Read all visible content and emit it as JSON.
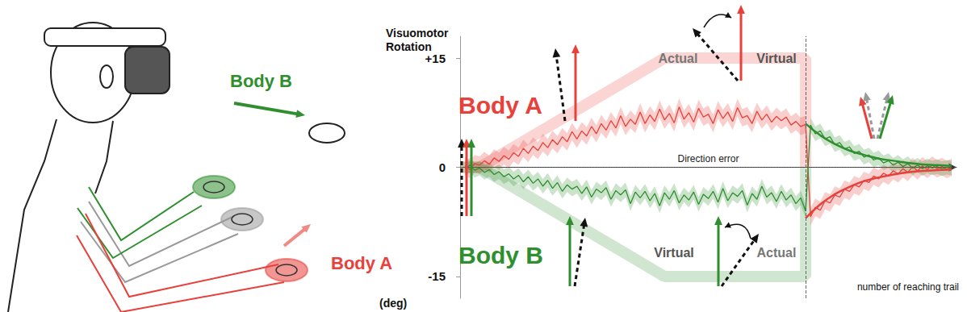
{
  "illustration": {
    "labels": [
      "Body B",
      "Body A"
    ]
  },
  "chart_data": {
    "type": "line",
    "ylabel": "Visuomotor Rotation",
    "yunit": "(deg)",
    "xlabel": "number of reaching trail",
    "zero_label": "Direction error",
    "annotations": [
      "Actual",
      "Virtual",
      "Virtual",
      "Actual"
    ],
    "xlim": [
      0,
      102
    ],
    "ylim": [
      -18,
      18
    ],
    "yticks": [
      -15,
      0,
      {
        "value": 15,
        "label": "+15"
      }
    ],
    "tick_labels": "y",
    "washout_start": 71,
    "x": [
      1,
      2,
      3,
      4,
      5,
      6,
      7,
      8,
      9,
      10,
      11,
      12,
      13,
      14,
      15,
      16,
      17,
      18,
      19,
      20,
      21,
      22,
      23,
      24,
      25,
      26,
      27,
      28,
      29,
      30,
      31,
      32,
      33,
      34,
      35,
      36,
      37,
      38,
      39,
      40,
      41,
      42,
      43,
      44,
      45,
      46,
      47,
      48,
      49,
      50,
      51,
      52,
      53,
      54,
      55,
      56,
      57,
      58,
      59,
      60,
      61,
      62,
      63,
      64,
      65,
      66,
      67,
      68,
      69,
      70,
      71,
      72,
      73,
      74,
      75,
      76,
      77,
      78,
      79,
      80,
      81,
      82,
      83,
      84,
      85,
      86,
      87,
      88,
      89,
      90,
      91,
      92,
      93,
      94,
      95,
      96,
      97,
      98,
      99,
      100,
      101
    ],
    "series": [
      {
        "name": "Body A",
        "color": "#e8403a",
        "values": [
          0.2,
          -0.3,
          0.5,
          0.3,
          0.9,
          0.4,
          1.3,
          0.8,
          1.6,
          1.1,
          2.0,
          1.5,
          2.6,
          1.9,
          2.9,
          2.3,
          3.4,
          2.7,
          3.8,
          3.1,
          4.2,
          3.5,
          4.9,
          3.9,
          5.0,
          4.3,
          5.6,
          4.6,
          6.0,
          5.1,
          6.4,
          5.4,
          7.1,
          5.6,
          6.6,
          5.9,
          7.6,
          6.0,
          7.2,
          6.3,
          8.0,
          6.5,
          7.4,
          6.1,
          8.3,
          6.6,
          7.5,
          6.2,
          8.1,
          6.9,
          7.3,
          6.0,
          7.9,
          6.7,
          7.6,
          6.3,
          8.2,
          6.8,
          7.1,
          6.0,
          7.7,
          6.5,
          7.3,
          6.2,
          7.0,
          6.4,
          6.9,
          5.8,
          6.3,
          5.6,
          5.9,
          -6.8,
          -5.5,
          -5.9,
          -4.6,
          -4.9,
          -3.8,
          -4.1,
          -3.0,
          -3.3,
          -2.4,
          -2.7,
          -1.8,
          -2.1,
          -1.2,
          -1.6,
          -0.8,
          -1.2,
          -0.5,
          -0.9,
          -0.2,
          -0.7,
          0.1,
          -0.5,
          0.2,
          -0.3,
          0.3,
          -0.2,
          0.1,
          -0.3,
          0.0
        ],
        "error": 1.2,
        "target": {
          "x": [
            0,
            4,
            42,
            71,
            71
          ],
          "values": [
            0,
            0,
            15,
            15,
            0
          ]
        },
        "fit": {
          "x": [
            71,
            74,
            77,
            80,
            83,
            86,
            89,
            92,
            95,
            98,
            101
          ],
          "values": [
            -7.0,
            -5.1,
            -3.7,
            -2.7,
            -1.9,
            -1.4,
            -1.0,
            -0.7,
            -0.5,
            -0.4,
            -0.3
          ]
        }
      },
      {
        "name": "Body B",
        "color": "#2f8f2f",
        "values": [
          -0.2,
          0.3,
          -0.4,
          -0.1,
          -0.7,
          -0.3,
          -1.0,
          -0.6,
          -1.3,
          -0.9,
          -1.6,
          -1.1,
          -2.0,
          -1.3,
          -2.2,
          -1.6,
          -2.6,
          -1.8,
          -2.9,
          -2.1,
          -3.3,
          -2.4,
          -3.0,
          -2.6,
          -3.6,
          -2.7,
          -4.1,
          -3.0,
          -3.5,
          -2.8,
          -4.4,
          -3.2,
          -3.8,
          -3.1,
          -5.0,
          -3.4,
          -4.2,
          -3.3,
          -4.6,
          -3.6,
          -5.3,
          -3.5,
          -4.4,
          -3.2,
          -4.9,
          -3.8,
          -4.5,
          -3.4,
          -5.1,
          -3.7,
          -4.3,
          -3.3,
          -4.8,
          -2.9,
          -4.6,
          -3.5,
          -4.0,
          -3.2,
          -5.2,
          -3.6,
          -4.4,
          -2.6,
          -4.1,
          -3.5,
          -4.7,
          -3.3,
          -4.5,
          -3.8,
          -5.0,
          -4.2,
          -6.0,
          5.8,
          4.6,
          5.0,
          3.9,
          4.2,
          3.1,
          3.4,
          2.5,
          2.8,
          1.9,
          2.2,
          1.4,
          1.7,
          1.0,
          1.3,
          0.6,
          0.9,
          0.3,
          0.7,
          0.1,
          0.5,
          -0.1,
          0.3,
          -0.2,
          0.2,
          -0.1,
          0.1,
          -0.2,
          0.0,
          -0.1
        ],
        "error": 1.0,
        "target": {
          "x": [
            0,
            4,
            42,
            71,
            71
          ],
          "values": [
            0,
            0,
            -15,
            -15,
            0
          ]
        },
        "fit": {
          "x": [
            71,
            74,
            77,
            80,
            83,
            86,
            89,
            92,
            95,
            98,
            101
          ],
          "values": [
            6.0,
            4.4,
            3.2,
            2.3,
            1.7,
            1.2,
            0.9,
            0.6,
            0.4,
            0.3,
            0.2
          ]
        }
      }
    ]
  }
}
